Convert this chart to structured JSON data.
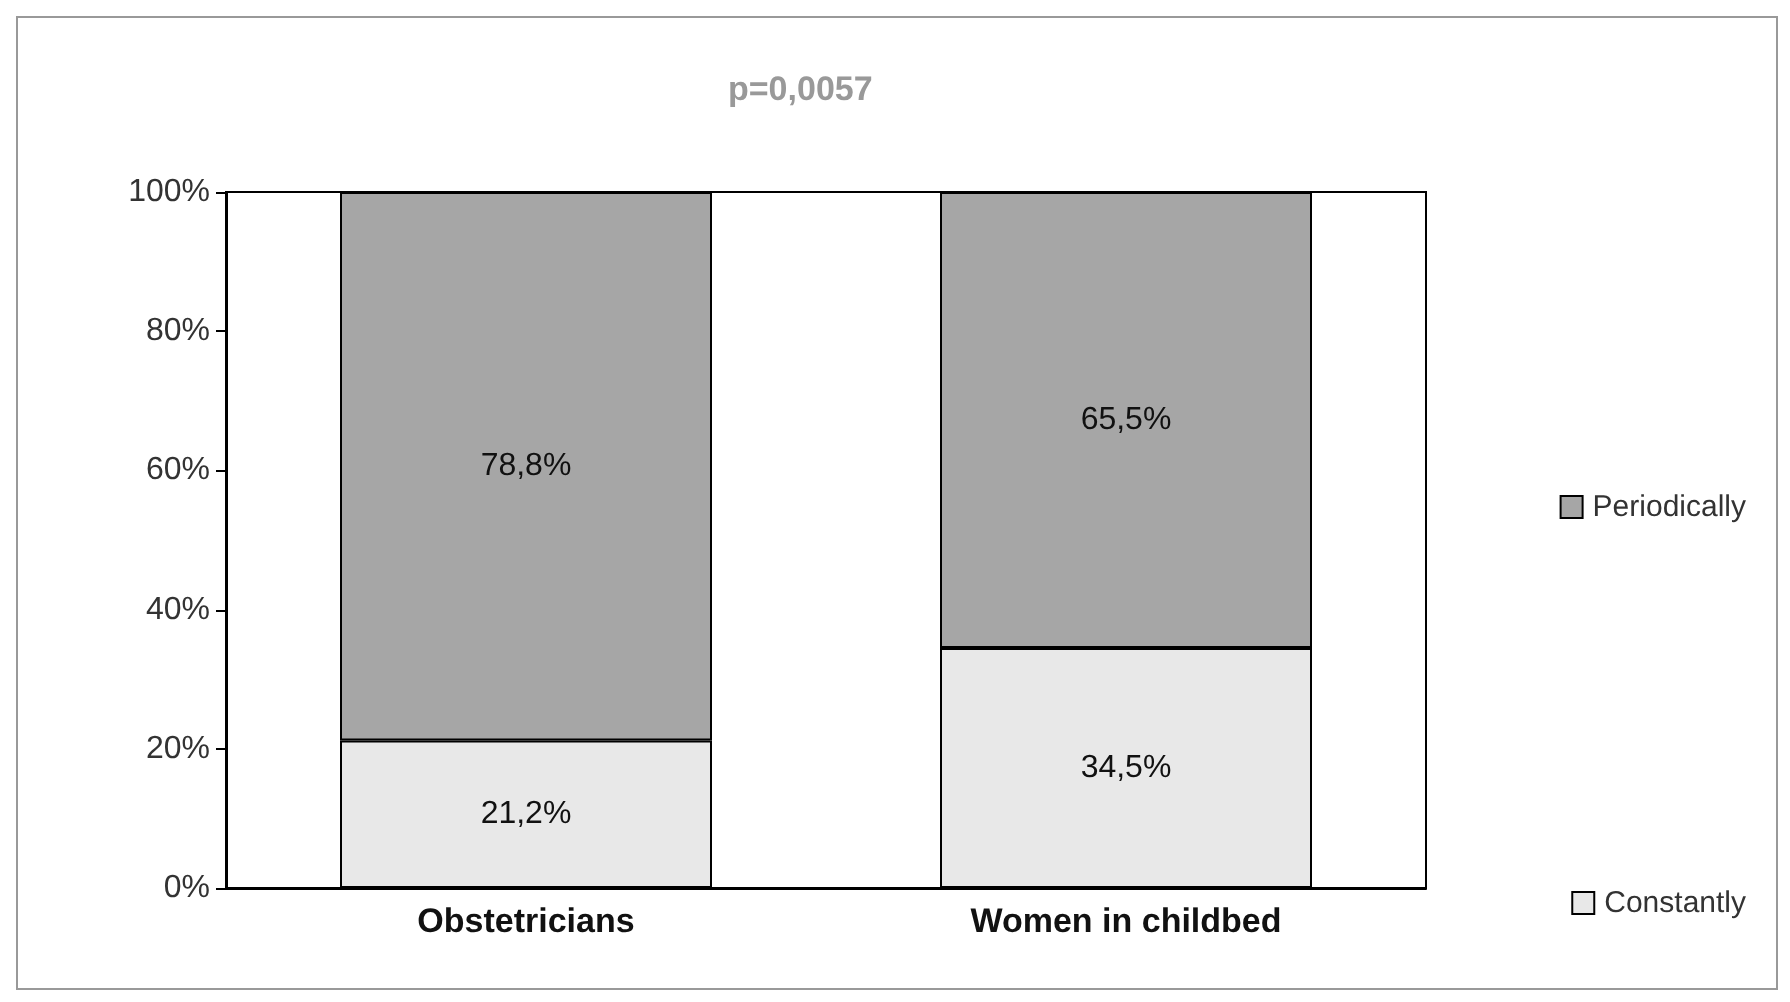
{
  "chart_data": {
    "type": "bar",
    "title": "p=0,0057",
    "categories": [
      "Obstetricians",
      "Women in childbed"
    ],
    "stacked": true,
    "series": [
      {
        "name": "Constantly",
        "color": "#e8e8e8",
        "values": [
          21.2,
          34.5
        ],
        "value_labels": [
          "21,2%",
          "34,5%"
        ]
      },
      {
        "name": "Periodically",
        "color": "#a6a6a6",
        "values": [
          78.8,
          65.5
        ],
        "value_labels": [
          "78,8%",
          "65,5%"
        ]
      }
    ],
    "ylim": [
      0,
      100
    ],
    "yticks": [
      {
        "value": 0,
        "label": "0%"
      },
      {
        "value": 20,
        "label": "20%"
      },
      {
        "value": 40,
        "label": "40%"
      },
      {
        "value": 60,
        "label": "60%"
      },
      {
        "value": 80,
        "label": "80%"
      },
      {
        "value": 100,
        "label": "100%"
      }
    ],
    "grid": false,
    "legend": "right"
  }
}
